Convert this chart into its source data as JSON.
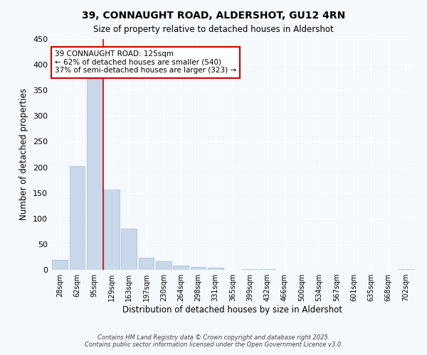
{
  "title": "39, CONNAUGHT ROAD, ALDERSHOT, GU12 4RN",
  "subtitle": "Size of property relative to detached houses in Aldershot",
  "xlabel": "Distribution of detached houses by size in Aldershot",
  "ylabel": "Number of detached properties",
  "bar_color": "#c8d8ea",
  "bar_edge_color": "#a0bcd5",
  "bg_color": "#f5f8fc",
  "grid_color": "#ffffff",
  "categories": [
    "28sqm",
    "62sqm",
    "95sqm",
    "129sqm",
    "163sqm",
    "197sqm",
    "230sqm",
    "264sqm",
    "298sqm",
    "331sqm",
    "365sqm",
    "399sqm",
    "432sqm",
    "466sqm",
    "500sqm",
    "534sqm",
    "567sqm",
    "601sqm",
    "635sqm",
    "668sqm",
    "702sqm"
  ],
  "values": [
    19,
    202,
    372,
    157,
    80,
    23,
    16,
    8,
    5,
    4,
    0,
    1,
    1,
    0,
    0,
    0,
    0,
    0,
    0,
    0,
    2
  ],
  "vline_color": "#cc0000",
  "annotation_text": "39 CONNAUGHT ROAD: 125sqm\n← 62% of detached houses are smaller (540)\n37% of semi-detached houses are larger (323) →",
  "annotation_box_color": "#ffffff",
  "annotation_box_edge": "#cc0000",
  "ylim": [
    0,
    450
  ],
  "yticks": [
    0,
    50,
    100,
    150,
    200,
    250,
    300,
    350,
    400,
    450
  ],
  "footer1": "Contains HM Land Registry data © Crown copyright and database right 2025.",
  "footer2": "Contains public sector information licensed under the Open Government Licence v3.0."
}
